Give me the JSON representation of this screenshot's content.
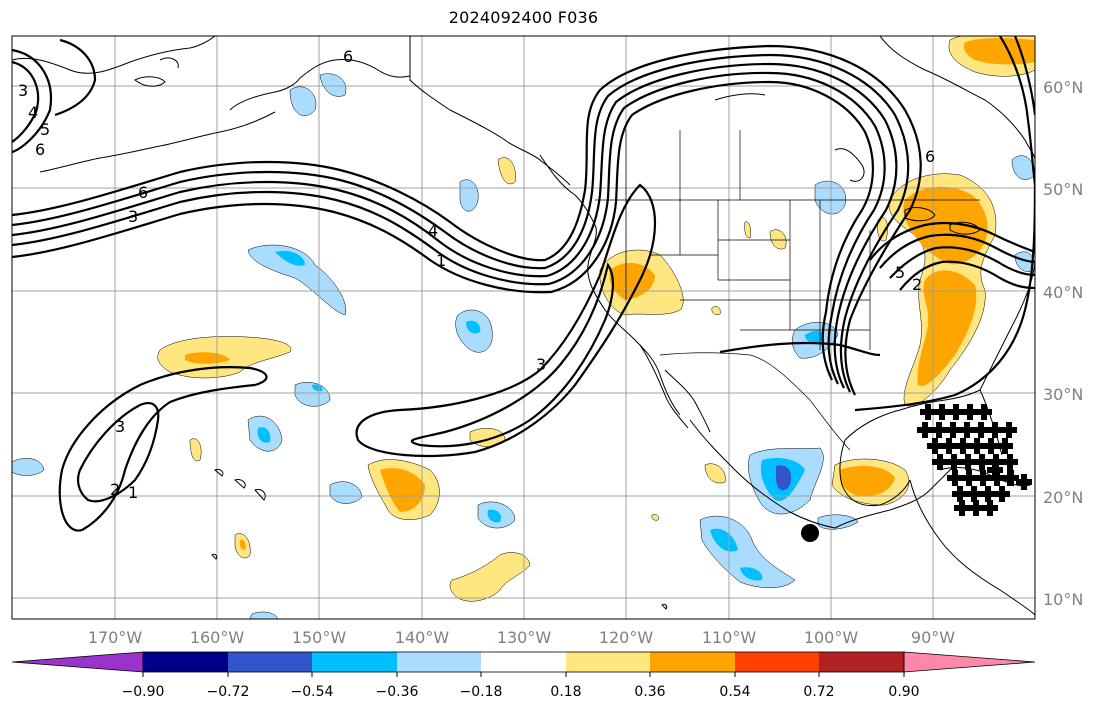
{
  "title": "2024092400 F036",
  "lat_labels": [
    "60°N",
    "50°N",
    "40°N",
    "30°N",
    "20°N",
    "10°N"
  ],
  "lon_labels": [
    "170°W",
    "160°W",
    "150°W",
    "140°W",
    "130°W",
    "120°W",
    "110°W",
    "100°W",
    "90°W"
  ],
  "contour_labels": [
    "6",
    "3",
    "4",
    "5",
    "6",
    "6",
    "3",
    "4",
    "1",
    "3",
    "3",
    "2",
    "1",
    "5",
    "2",
    "6"
  ],
  "colorbar": {
    "tick_labels": [
      "−0.90",
      "−0.72",
      "−0.54",
      "−0.36",
      "−0.18",
      "0.18",
      "0.36",
      "0.54",
      "0.72",
      "0.90"
    ],
    "colors": [
      "#9933cc",
      "#000088",
      "#3355cc",
      "#00bfff",
      "#aadcff",
      "#ffffff",
      "#ffe680",
      "#ffa500",
      "#ff4000",
      "#b22222",
      "#ff88aa"
    ]
  },
  "colors": {
    "land_outline": "#000000",
    "grid": "#a0a0a0",
    "contour": "#000000",
    "neg_light": "#aadcff",
    "neg_mid": "#00bfff",
    "neg_dark": "#3355cc",
    "pos_light": "#ffe680",
    "pos_mid": "#ffa500"
  }
}
